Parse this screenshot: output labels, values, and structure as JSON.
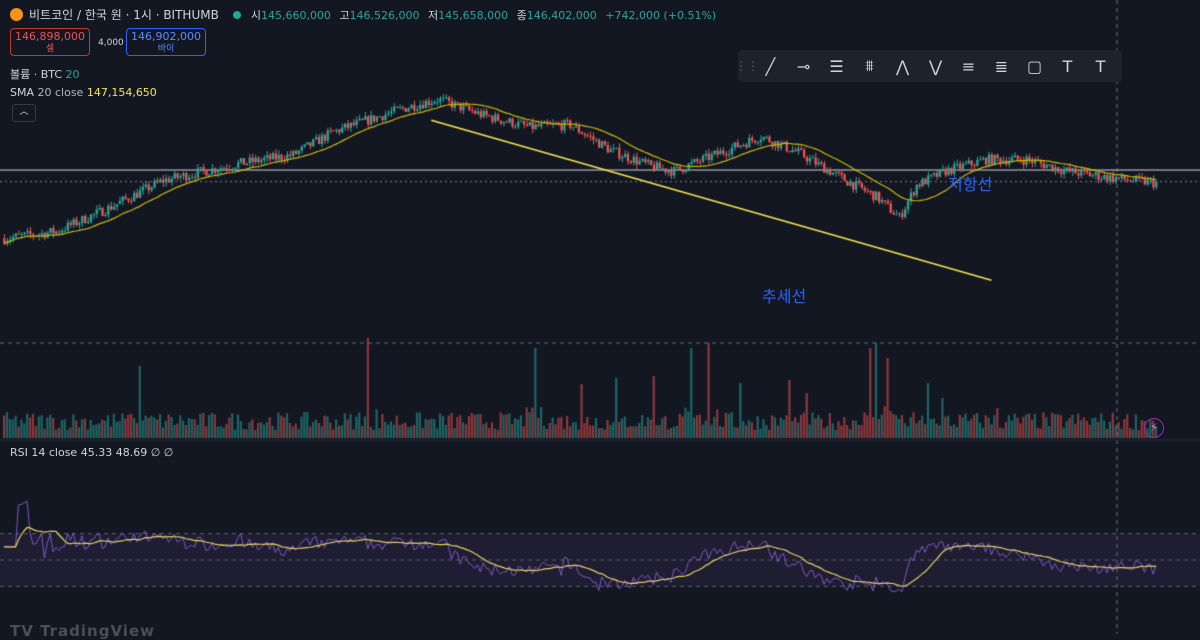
{
  "header": {
    "title": "비트코인 / 한국 원 · 1시 · BITHUMB",
    "ohlc": [
      {
        "k": "시",
        "v": "145,660,000"
      },
      {
        "k": "고",
        "v": "146,526,000"
      },
      {
        "k": "저",
        "v": "145,658,000"
      },
      {
        "k": "종",
        "v": "146,402,000"
      }
    ],
    "change": "+742,000 (+0.51%)"
  },
  "trade": {
    "sell_price": "146,898,000",
    "sell_label": "셀",
    "spread": "4,000",
    "buy_price": "146,902,000",
    "buy_label": "바이"
  },
  "indicators": {
    "volume": {
      "label": "볼륨 · BTC",
      "value": "20"
    },
    "sma": {
      "label": "SMA",
      "params": "20 close",
      "value": "147,154,650"
    },
    "rsi": {
      "label": "RSI",
      "params": "14 close",
      "v1": "45.33",
      "v2": "48.69",
      "v3": "∅",
      "v4": "∅"
    }
  },
  "toolbar": {
    "icons": [
      "trend-line-icon",
      "horizontal-ray-icon",
      "parallel-channel-icon",
      "fib-retracement-icon",
      "xabcd-pattern-icon",
      "abcd-pattern-icon",
      "long-position-icon",
      "short-position-icon",
      "rectangle-icon",
      "text-icon",
      "text-anchor-icon"
    ],
    "glyphs": [
      "╱",
      "⊸",
      "☰",
      "⩩",
      "⋀",
      "⋁",
      "≡",
      "≣",
      "▢",
      "T",
      "T"
    ]
  },
  "annotations": {
    "resistance": "저항선",
    "trendline": "추세선"
  },
  "watermark": "TV TradingView",
  "colors": {
    "bg": "#131722",
    "up": "#26a69a",
    "down": "#ef5350",
    "sma": "#c8b400",
    "rsi": "#7e57c2",
    "rsi_ma": "#e0d060",
    "trend": "#f0e44d",
    "resistance": "#d1d4dc",
    "label": "#2962ff"
  },
  "chart_data": [
    {
      "type": "candlestick",
      "title": "비트코인 / 한국 원 · 1시 · BITHUMB",
      "grid": false,
      "ohlc_keyframes": [
        [
          0,
          0.36
        ],
        [
          18,
          0.39
        ],
        [
          36,
          0.49
        ],
        [
          55,
          0.61
        ],
        [
          80,
          0.68
        ],
        [
          100,
          0.72
        ],
        [
          114,
          0.82
        ],
        [
          138,
          0.92
        ],
        [
          150,
          0.96
        ],
        [
          157,
          0.93
        ],
        [
          166,
          0.89
        ],
        [
          182,
          0.84
        ],
        [
          196,
          0.85
        ],
        [
          210,
          0.74
        ],
        [
          224,
          0.67
        ],
        [
          232,
          0.65
        ],
        [
          250,
          0.74
        ],
        [
          262,
          0.8
        ],
        [
          275,
          0.73
        ],
        [
          290,
          0.62
        ],
        [
          302,
          0.54
        ],
        [
          310,
          0.45
        ],
        [
          316,
          0.59
        ],
        [
          326,
          0.65
        ],
        [
          340,
          0.7
        ],
        [
          354,
          0.7
        ],
        [
          368,
          0.65
        ],
        [
          384,
          0.62
        ],
        [
          398,
          0.6
        ]
      ],
      "last_close": "146,402,000",
      "sma_period": 20,
      "resistance_level": 0.655,
      "trendline": {
        "from": [
          148,
          0.87
        ],
        "to": [
          342,
          0.18
        ]
      }
    },
    {
      "type": "bar",
      "title": "볼륨 · BTC",
      "base": 0.08,
      "spikes": [
        [
          47,
          0.72
        ],
        [
          126,
          1.0
        ],
        [
          184,
          0.9
        ],
        [
          200,
          0.54
        ],
        [
          212,
          0.6
        ],
        [
          225,
          0.62
        ],
        [
          238,
          0.9
        ],
        [
          244,
          0.95
        ],
        [
          255,
          0.55
        ],
        [
          272,
          0.58
        ],
        [
          278,
          0.45
        ],
        [
          300,
          0.9
        ],
        [
          302,
          0.95
        ],
        [
          306,
          0.8
        ],
        [
          320,
          0.55
        ],
        [
          325,
          0.4
        ],
        [
          344,
          0.3
        ]
      ]
    },
    {
      "type": "line",
      "title": "RSI",
      "ylim": [
        0,
        100
      ],
      "bands": [
        30,
        50,
        70
      ],
      "last_values": {
        "rsi": 45.33,
        "ma": 48.69
      }
    }
  ]
}
